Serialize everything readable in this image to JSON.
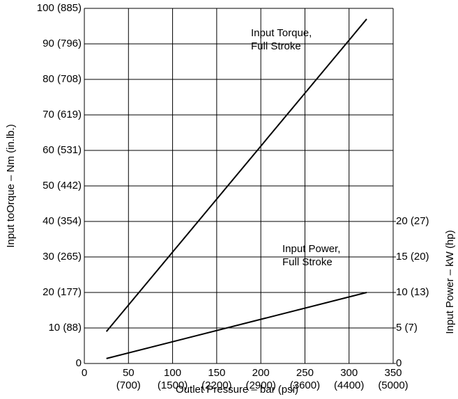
{
  "chart_data": {
    "type": "line",
    "x_label": "Outlet Pressure – bar (psi)",
    "y_label": "Input toOrque – Nm (in.lb.)",
    "y2_label": "Input Power – kW (hp)",
    "x": [
      25,
      320
    ],
    "series": [
      {
        "name": "Input Torque, Full Stroke",
        "color": "#000000",
        "values": [
          9,
          97
        ]
      },
      {
        "name": "Input Power, Full Stroke",
        "color": "#000000",
        "values": [
          0.7,
          10
        ],
        "axis": "y2"
      }
    ],
    "annotations": [
      [
        "Input Torque,",
        "Full Stroke"
      ],
      [
        "Input Power,",
        "Full Stroke"
      ]
    ],
    "xlim": [
      0,
      350
    ],
    "xticks": [
      0,
      50,
      100,
      150,
      200,
      250,
      300,
      350
    ],
    "xticks_secondary": [
      null,
      "(700)",
      "(1500)",
      "(2200)",
      "(2900)",
      "(3600)",
      "(4400)",
      "(5000)"
    ],
    "ylim": [
      0,
      100
    ],
    "yticks": [
      0,
      {
        "value": 10,
        "label": "10 (88)"
      },
      {
        "value": 20,
        "label": "20 (177)"
      },
      {
        "value": 30,
        "label": "30 (265)"
      },
      {
        "value": 40,
        "label": "40 (354)"
      },
      {
        "value": 50,
        "label": "50 (442)"
      },
      {
        "value": 60,
        "label": "60 (531)"
      },
      {
        "value": 70,
        "label": "70 (619)"
      },
      {
        "value": 80,
        "label": "80 (708)"
      },
      {
        "value": 90,
        "label": "90 (796)"
      },
      {
        "value": 100,
        "label": "100 (885)"
      }
    ],
    "y2lim": [
      0,
      50
    ],
    "y2ticks": [
      0,
      {
        "value": 5,
        "label": "5 (7)"
      },
      {
        "value": 10,
        "label": "10 (13)"
      },
      {
        "value": 15,
        "label": "15 (20)"
      },
      {
        "value": 20,
        "label": "20 (27)"
      }
    ],
    "grid": true
  }
}
